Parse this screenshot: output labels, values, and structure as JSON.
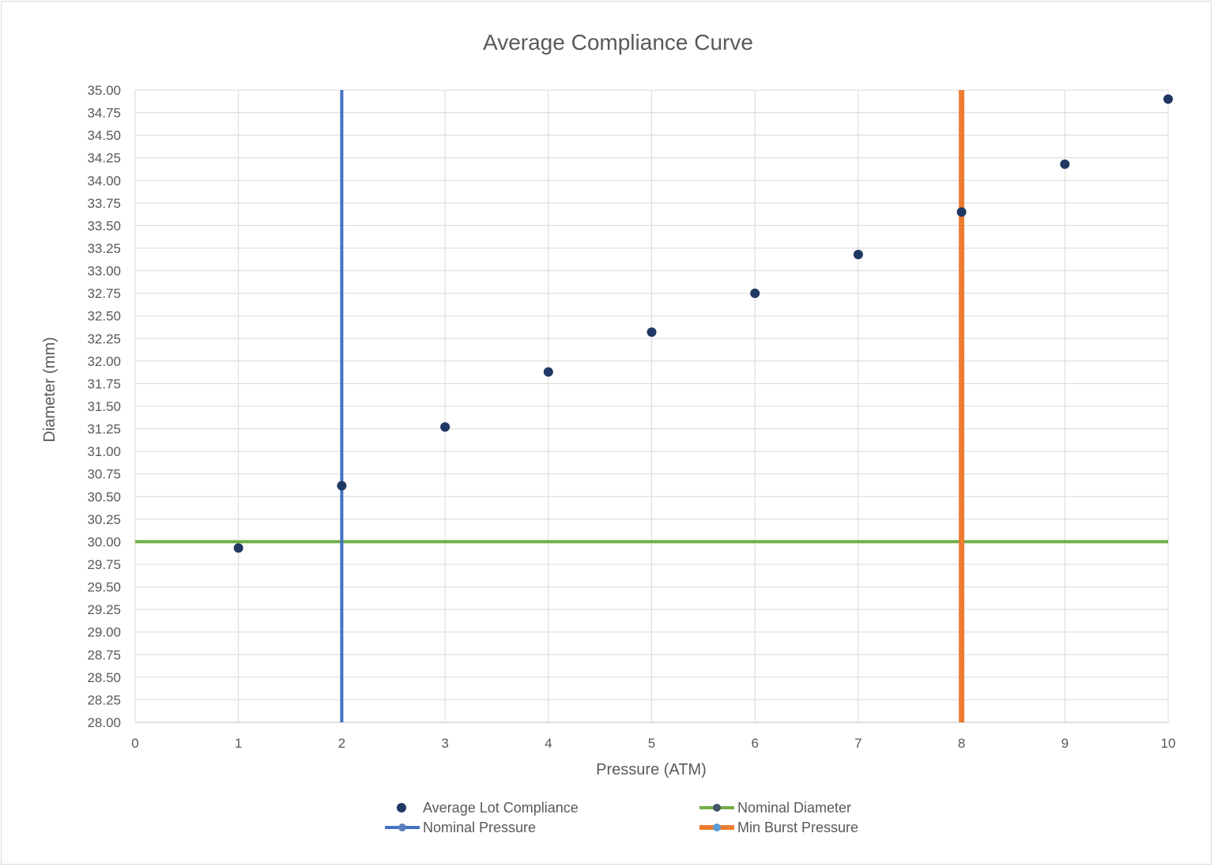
{
  "chart_data": {
    "type": "scatter",
    "title": "Average Compliance Curve",
    "xlabel": "Pressure (ATM)",
    "ylabel": "Diameter (mm)",
    "xlim": [
      0,
      10
    ],
    "ylim": [
      28,
      35
    ],
    "x_ticks": [
      "0",
      "1",
      "2",
      "3",
      "4",
      "5",
      "6",
      "7",
      "8",
      "9",
      "10"
    ],
    "y_ticks": [
      "28.00",
      "28.25",
      "28.50",
      "28.75",
      "29.00",
      "29.25",
      "29.50",
      "29.75",
      "30.00",
      "30.25",
      "30.50",
      "30.75",
      "31.00",
      "31.25",
      "31.50",
      "31.75",
      "32.00",
      "32.25",
      "32.50",
      "32.75",
      "33.00",
      "33.25",
      "33.50",
      "33.75",
      "34.00",
      "34.25",
      "34.50",
      "34.75",
      "35.00"
    ],
    "grid": true,
    "legend_position": "bottom",
    "series": [
      {
        "name": "Average Lot Compliance",
        "kind": "points",
        "color": "#203864",
        "x": [
          1,
          2,
          3,
          4,
          5,
          6,
          7,
          8,
          9,
          10
        ],
        "y": [
          29.93,
          30.62,
          31.27,
          31.88,
          32.32,
          32.75,
          33.18,
          33.65,
          34.18,
          34.9
        ]
      },
      {
        "name": "Nominal Diameter",
        "kind": "hline",
        "color": "#70ad47",
        "y": 30.0
      },
      {
        "name": "Nominal Pressure",
        "kind": "vline",
        "color": "#4472c4",
        "x": 2
      },
      {
        "name": "Min Burst Pressure",
        "kind": "vline",
        "color": "#ed7d31",
        "x": 8
      }
    ]
  }
}
